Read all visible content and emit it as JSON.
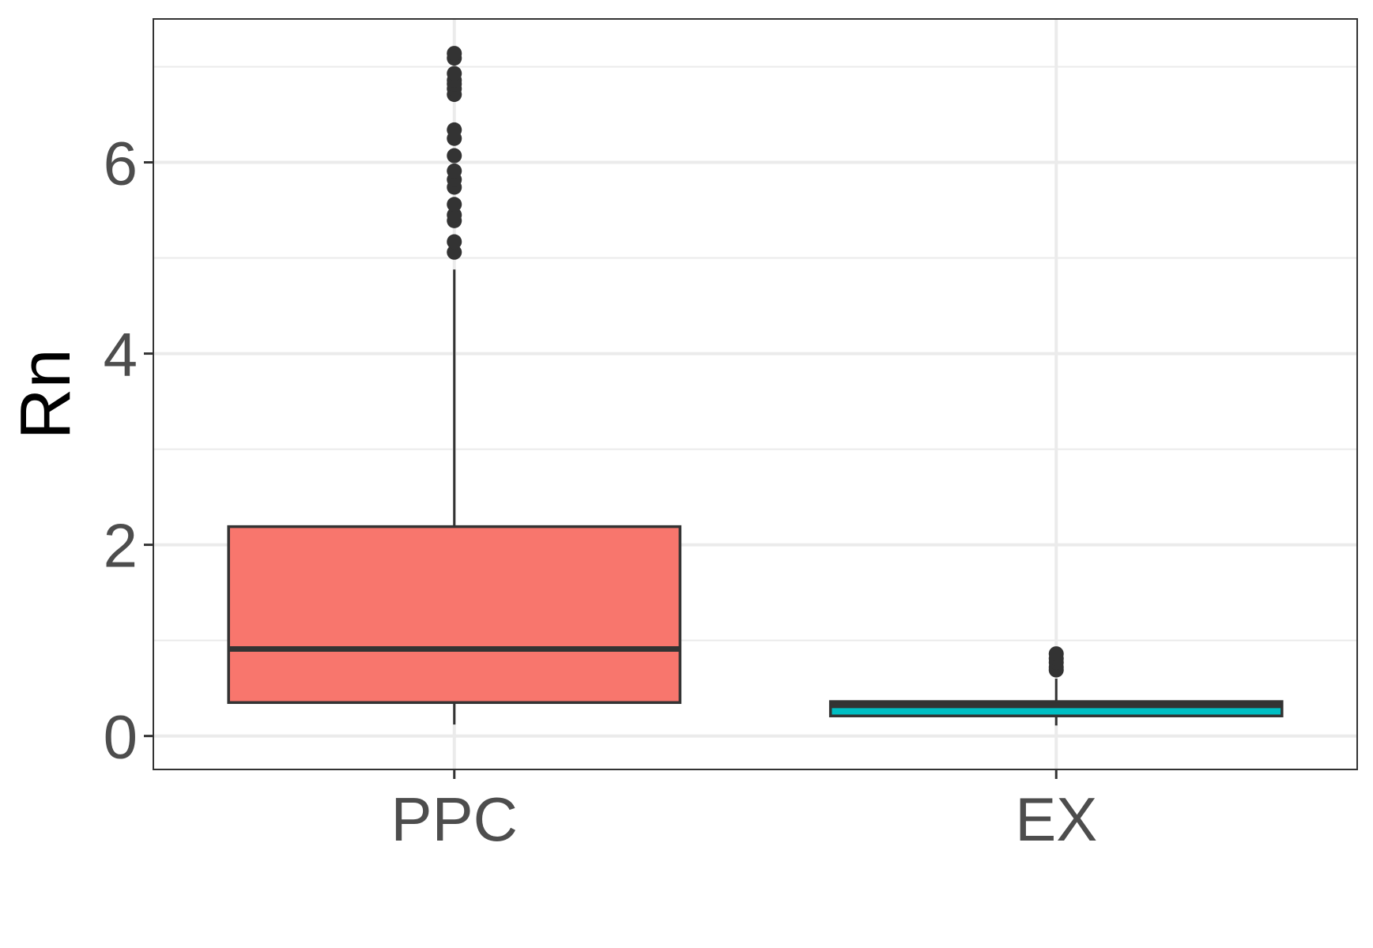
{
  "chart_data": {
    "type": "boxplot",
    "title": "",
    "xlabel": "",
    "ylabel": "Rn",
    "ylim": [
      -0.35,
      7.5
    ],
    "y_ticks": [
      0,
      2,
      4,
      6
    ],
    "y_minor_ticks": [
      1,
      3,
      5,
      7
    ],
    "grid": true,
    "categories": [
      "PPC",
      "EX"
    ],
    "boxes": [
      {
        "category": "PPC",
        "whisker_low": 0.12,
        "q1": 0.35,
        "median": 0.91,
        "q3": 2.19,
        "whisker_high": 4.88,
        "outliers": [
          5.06,
          5.17,
          5.39,
          5.45,
          5.56,
          5.74,
          5.82,
          5.91,
          6.07,
          6.25,
          6.34,
          6.71,
          6.77,
          6.82,
          6.86,
          6.93,
          7.09,
          7.14
        ],
        "color": "#F8766D"
      },
      {
        "category": "EX",
        "whisker_low": 0.11,
        "q1": 0.21,
        "median": 0.32,
        "q3": 0.36,
        "whisker_high": 0.6,
        "outliers": [
          0.69,
          0.72,
          0.77,
          0.81,
          0.86
        ],
        "color": "#00BFC4"
      }
    ]
  }
}
